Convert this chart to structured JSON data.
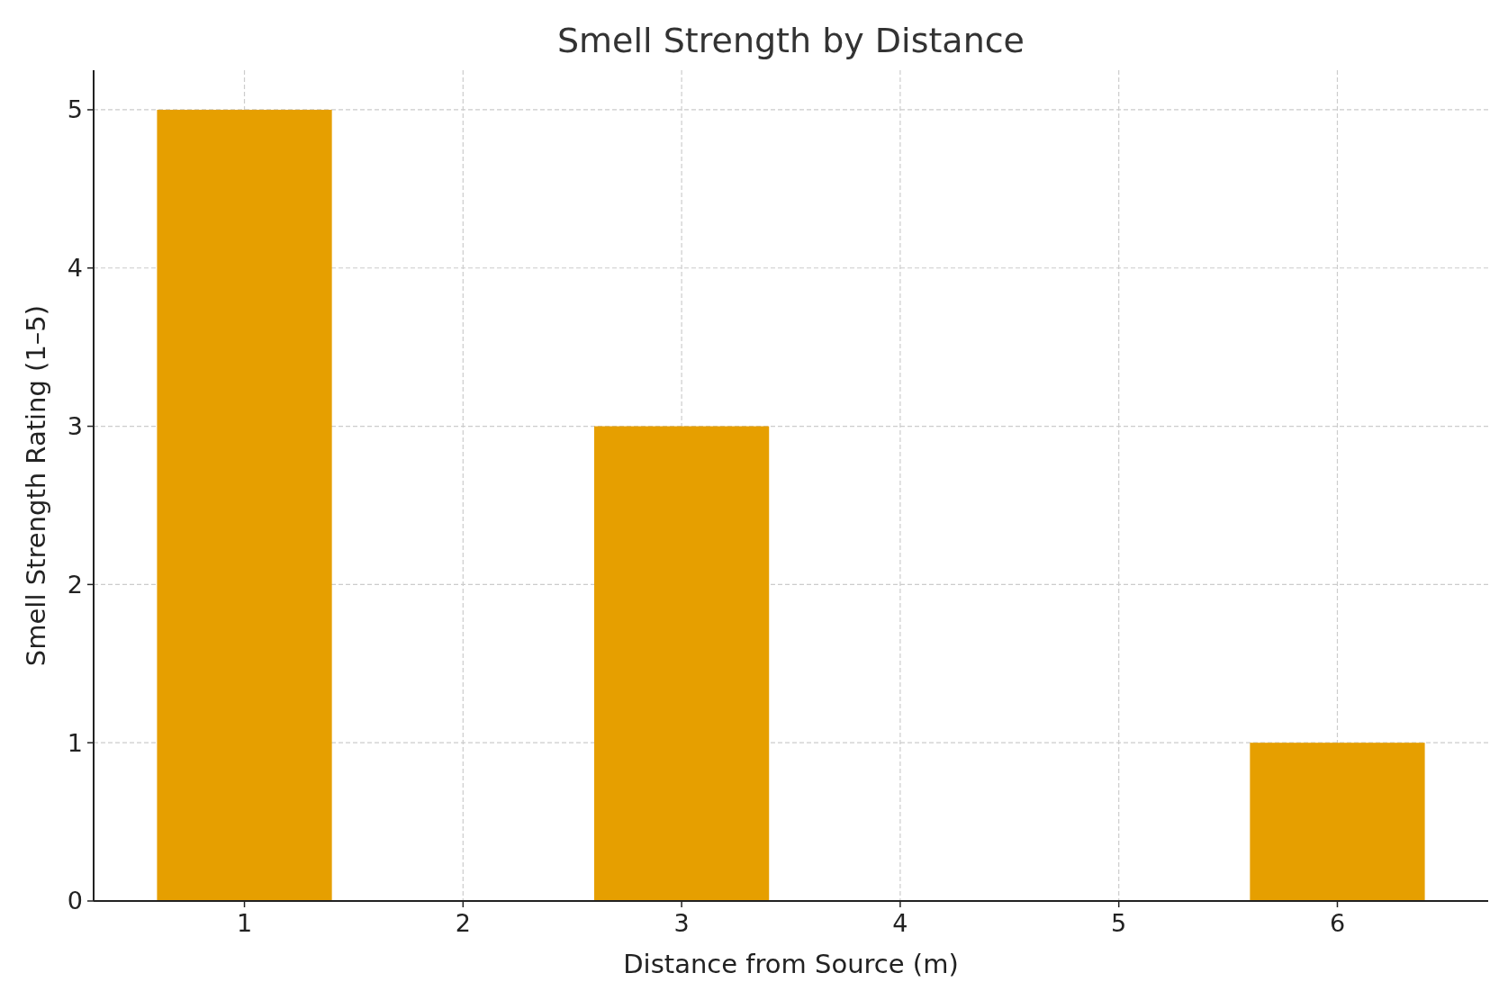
{
  "chart_data": {
    "type": "bar",
    "title": "Smell Strength by Distance",
    "xlabel": "Distance from Source (m)",
    "ylabel": "Smell Strength Rating (1–5)",
    "x": [
      1,
      3,
      6
    ],
    "values": [
      5,
      3,
      1
    ],
    "color": "#e69f00",
    "xlim": [
      0.31,
      6.69
    ],
    "xticks": [
      1,
      2,
      3,
      4,
      5,
      6
    ],
    "ylim": [
      0,
      5.25
    ],
    "yticks": [
      0,
      1,
      2,
      3,
      4,
      5
    ],
    "grid": true
  }
}
